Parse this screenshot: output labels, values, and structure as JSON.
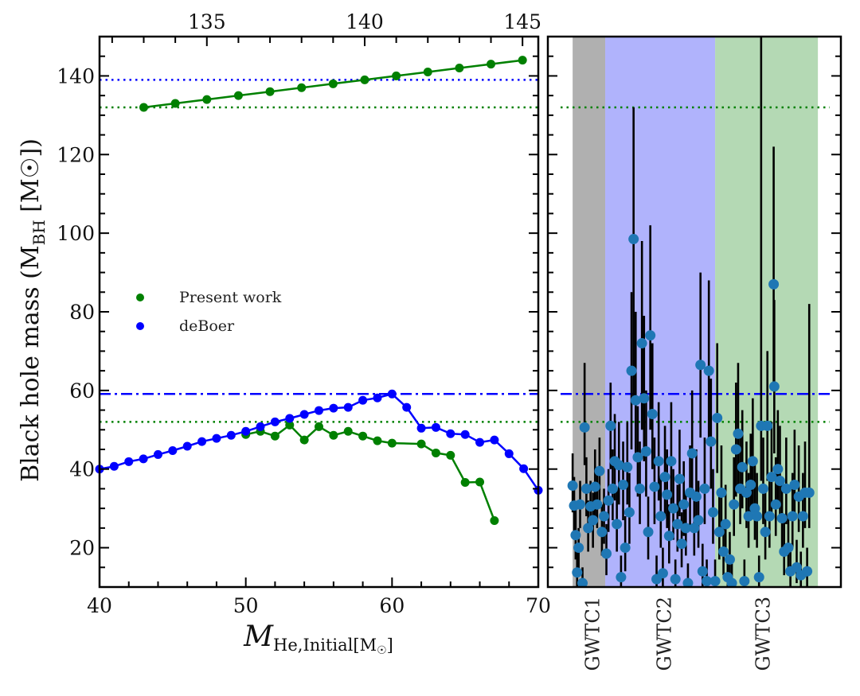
{
  "chart_data": [
    {
      "type": "line",
      "panel": "left",
      "title": "",
      "xlabel": "M_He,Initial [M☉]",
      "xlabel_main": "M",
      "xlabel_sub": "He,Initial[M",
      "xlabel_sub_end": "]",
      "ylabel": "Black hole mass (M_BH [M☉])",
      "ylabel_main": "Black hole mass (M",
      "ylabel_sub": "BH",
      "ylabel_end": " [M☉])",
      "xlim": [
        40,
        70
      ],
      "ylim": [
        10,
        150
      ],
      "xticks": [
        40,
        50,
        60,
        70
      ],
      "xtick_labels": [
        "40",
        "50",
        "60",
        "70"
      ],
      "yticks": [
        20,
        40,
        60,
        80,
        100,
        120,
        140
      ],
      "ytick_labels": [
        "20",
        "40",
        "60",
        "80",
        "100",
        "120",
        "140"
      ],
      "top_axis": {
        "xlim": [
          131.6,
          145.5
        ],
        "ticks": [
          135,
          140,
          145
        ],
        "tick_labels": [
          "135",
          "140",
          "145"
        ]
      },
      "legend": {
        "placement": "center-left",
        "entries": [
          {
            "label": "Present work",
            "color": "#008000"
          },
          {
            "label": "deBoer",
            "color": "#0000ff"
          }
        ]
      },
      "series": [
        {
          "name": "Present work (lower branch)",
          "color": "#008000",
          "axis": "bottom",
          "x": [
            50,
            51,
            52,
            53,
            54,
            55,
            56,
            57,
            58,
            59,
            60,
            62,
            63,
            64,
            65,
            66,
            67
          ],
          "y": [
            48.8,
            49.6,
            48.4,
            51.2,
            47.4,
            50.8,
            48.6,
            49.6,
            48.4,
            47.2,
            46.6,
            46.4,
            44.1,
            43.5,
            36.6,
            36.7,
            26.9
          ]
        },
        {
          "name": "deBoer",
          "color": "#0000ff",
          "axis": "bottom",
          "x": [
            40,
            41,
            42,
            43,
            44,
            45,
            46,
            47,
            48,
            49,
            50,
            51,
            52,
            53,
            54,
            55,
            56,
            57,
            58,
            59,
            60,
            61,
            62,
            63,
            64,
            65,
            66,
            67,
            68,
            69,
            70
          ],
          "y": [
            40.0,
            40.7,
            41.9,
            42.6,
            43.7,
            44.7,
            45.8,
            47.0,
            47.8,
            48.6,
            49.6,
            50.8,
            52.0,
            52.9,
            53.9,
            54.9,
            55.5,
            55.7,
            57.5,
            58.1,
            59.1,
            55.7,
            50.4,
            50.6,
            49.0,
            48.8,
            46.8,
            47.4,
            43.9,
            40.1,
            34.6
          ]
        },
        {
          "name": "Present work (upper branch)",
          "color": "#008000",
          "axis": "top",
          "x": [
            133,
            134,
            135,
            136,
            137,
            138,
            139,
            140,
            141,
            142,
            143,
            144,
            145
          ],
          "y": [
            132,
            133,
            134,
            135,
            136,
            137,
            138,
            139,
            140,
            141,
            142,
            143,
            144
          ]
        }
      ],
      "reference_lines": [
        {
          "name": "blue-dotted",
          "y": 139,
          "color": "#0000ff",
          "style": "dotted"
        },
        {
          "name": "green-dotted-upper",
          "y": 132,
          "color": "#008000",
          "style": "dotted"
        },
        {
          "name": "blue-dashdot",
          "y": 59.1,
          "color": "#0000ff",
          "style": "dashdot"
        },
        {
          "name": "green-dotted-lower",
          "y": 52,
          "color": "#008000",
          "style": "dotted"
        }
      ]
    },
    {
      "type": "scatter",
      "panel": "right",
      "title": "",
      "ylim": [
        10,
        150
      ],
      "xlim": [
        -8.3,
        89.8
      ],
      "category_labels": [
        {
          "label": "GWTC1",
          "x": 6.5
        },
        {
          "label": "GWTC2",
          "x": 30.5
        },
        {
          "label": "GWTC3",
          "x": 63.5
        }
      ],
      "bands": [
        {
          "label": "GWTC1",
          "x0": 0,
          "x1": 10.9,
          "color": "#b0b0b0"
        },
        {
          "label": "GWTC2",
          "x0": 10.9,
          "x1": 47.7,
          "color": "#b0b3fc"
        },
        {
          "label": "GWTC3",
          "x0": 47.7,
          "x1": 82.1,
          "color": "#b4d9b4"
        }
      ],
      "reference_lines": [
        {
          "name": "green-dotted-upper",
          "y": 132,
          "color": "#008000",
          "style": "dotted"
        },
        {
          "name": "blue-dashdot",
          "y": 59.1,
          "color": "#0000ff",
          "style": "dashdot"
        },
        {
          "name": "green-dotted-lower",
          "y": 52,
          "color": "#008000",
          "style": "dotted"
        }
      ],
      "marker_color": "#1f77b4",
      "points": [
        {
          "x": 0.0,
          "y": 35.8,
          "lo": 29,
          "hi": 44
        },
        {
          "x": 0.5,
          "y": 30.7,
          "lo": 24,
          "hi": 38
        },
        {
          "x": 1.0,
          "y": 23.2,
          "lo": 17,
          "hi": 30
        },
        {
          "x": 1.5,
          "y": 13.7,
          "lo": 10,
          "hi": 20
        },
        {
          "x": 2.0,
          "y": 20.0,
          "lo": 14,
          "hi": 25
        },
        {
          "x": 2.5,
          "y": 31.0,
          "lo": 25,
          "hi": 37
        },
        {
          "x": 3.3,
          "y": 11.0,
          "lo": 9,
          "hi": 15
        },
        {
          "x": 4.0,
          "y": 50.6,
          "lo": 41,
          "hi": 67
        },
        {
          "x": 4.6,
          "y": 35.0,
          "lo": 28,
          "hi": 43
        },
        {
          "x": 5.2,
          "y": 25.0,
          "lo": 19,
          "hi": 32
        },
        {
          "x": 6.0,
          "y": 30.5,
          "lo": 24,
          "hi": 37
        },
        {
          "x": 6.8,
          "y": 27.0,
          "lo": 20,
          "hi": 34
        },
        {
          "x": 7.5,
          "y": 35.5,
          "lo": 28,
          "hi": 45
        },
        {
          "x": 8.2,
          "y": 31.0,
          "lo": 25,
          "hi": 40
        },
        {
          "x": 9.0,
          "y": 39.5,
          "lo": 31,
          "hi": 48
        },
        {
          "x": 9.8,
          "y": 24.0,
          "lo": 18,
          "hi": 31
        },
        {
          "x": 10.5,
          "y": 28.0,
          "lo": 21,
          "hi": 35
        },
        {
          "x": 11.3,
          "y": 18.5,
          "lo": 13,
          "hi": 26
        },
        {
          "x": 12.0,
          "y": 32.0,
          "lo": 24,
          "hi": 40
        },
        {
          "x": 12.7,
          "y": 51.0,
          "lo": 40,
          "hi": 62
        },
        {
          "x": 13.4,
          "y": 35.0,
          "lo": 27,
          "hi": 45
        },
        {
          "x": 14.1,
          "y": 42.0,
          "lo": 32,
          "hi": 54
        },
        {
          "x": 14.8,
          "y": 26.0,
          "lo": 19,
          "hi": 35
        },
        {
          "x": 15.5,
          "y": 41.0,
          "lo": 31,
          "hi": 52
        },
        {
          "x": 16.2,
          "y": 12.5,
          "lo": 9,
          "hi": 18
        },
        {
          "x": 16.9,
          "y": 36.0,
          "lo": 27,
          "hi": 47
        },
        {
          "x": 17.6,
          "y": 20.0,
          "lo": 14,
          "hi": 28
        },
        {
          "x": 18.3,
          "y": 40.5,
          "lo": 31,
          "hi": 52
        },
        {
          "x": 19.0,
          "y": 29.0,
          "lo": 21,
          "hi": 39
        },
        {
          "x": 19.7,
          "y": 65.0,
          "lo": 45,
          "hi": 85
        },
        {
          "x": 20.4,
          "y": 98.5,
          "lo": 58,
          "hi": 132
        },
        {
          "x": 21.1,
          "y": 57.5,
          "lo": 43,
          "hi": 80
        },
        {
          "x": 21.8,
          "y": 43.0,
          "lo": 33,
          "hi": 56
        },
        {
          "x": 22.5,
          "y": 35.0,
          "lo": 26,
          "hi": 47
        },
        {
          "x": 23.2,
          "y": 72.0,
          "lo": 50,
          "hi": 98
        },
        {
          "x": 23.9,
          "y": 58.0,
          "lo": 42,
          "hi": 79
        },
        {
          "x": 24.6,
          "y": 44.5,
          "lo": 33,
          "hi": 60
        },
        {
          "x": 25.3,
          "y": 24.0,
          "lo": 17,
          "hi": 33
        },
        {
          "x": 26.0,
          "y": 74.0,
          "lo": 50,
          "hi": 102
        },
        {
          "x": 26.7,
          "y": 54.0,
          "lo": 40,
          "hi": 72
        },
        {
          "x": 27.4,
          "y": 35.5,
          "lo": 26,
          "hi": 48
        },
        {
          "x": 28.1,
          "y": 12.0,
          "lo": 9,
          "hi": 18
        },
        {
          "x": 28.8,
          "y": 42.0,
          "lo": 32,
          "hi": 57
        },
        {
          "x": 29.5,
          "y": 28.0,
          "lo": 20,
          "hi": 38
        },
        {
          "x": 30.2,
          "y": 13.5,
          "lo": 10,
          "hi": 20
        },
        {
          "x": 30.9,
          "y": 38.0,
          "lo": 28,
          "hi": 51
        },
        {
          "x": 31.6,
          "y": 33.5,
          "lo": 25,
          "hi": 45
        },
        {
          "x": 32.3,
          "y": 23.0,
          "lo": 16,
          "hi": 31
        },
        {
          "x": 33.0,
          "y": 42.0,
          "lo": 31,
          "hi": 57
        },
        {
          "x": 33.7,
          "y": 30.0,
          "lo": 22,
          "hi": 40
        },
        {
          "x": 34.4,
          "y": 12.0,
          "lo": 9,
          "hi": 17
        },
        {
          "x": 35.1,
          "y": 26.0,
          "lo": 19,
          "hi": 36
        },
        {
          "x": 35.8,
          "y": 37.5,
          "lo": 28,
          "hi": 50
        },
        {
          "x": 36.5,
          "y": 21.0,
          "lo": 15,
          "hi": 29
        },
        {
          "x": 37.2,
          "y": 31.0,
          "lo": 23,
          "hi": 42
        },
        {
          "x": 37.9,
          "y": 25.0,
          "lo": 18,
          "hi": 34
        },
        {
          "x": 38.6,
          "y": 11.0,
          "lo": 9,
          "hi": 16
        },
        {
          "x": 39.3,
          "y": 34.0,
          "lo": 25,
          "hi": 46
        },
        {
          "x": 40.0,
          "y": 44.0,
          "lo": 33,
          "hi": 60
        },
        {
          "x": 40.7,
          "y": 25.0,
          "lo": 18,
          "hi": 34
        },
        {
          "x": 41.4,
          "y": 33.0,
          "lo": 24,
          "hi": 45
        },
        {
          "x": 42.1,
          "y": 27.0,
          "lo": 20,
          "hi": 37
        },
        {
          "x": 42.8,
          "y": 66.5,
          "lo": 48,
          "hi": 90
        },
        {
          "x": 43.5,
          "y": 14.0,
          "lo": 10,
          "hi": 21
        },
        {
          "x": 44.2,
          "y": 35.0,
          "lo": 26,
          "hi": 48
        },
        {
          "x": 44.9,
          "y": 11.5,
          "lo": 9,
          "hi": 17
        },
        {
          "x": 45.6,
          "y": 65.0,
          "lo": 47,
          "hi": 88
        },
        {
          "x": 46.3,
          "y": 47.0,
          "lo": 35,
          "hi": 63
        },
        {
          "x": 47.0,
          "y": 29.0,
          "lo": 21,
          "hi": 40
        },
        {
          "x": 47.7,
          "y": 11.5,
          "lo": 9,
          "hi": 17
        },
        {
          "x": 48.4,
          "y": 53.0,
          "lo": 39,
          "hi": 72
        },
        {
          "x": 49.1,
          "y": 24.0,
          "lo": 17,
          "hi": 33
        },
        {
          "x": 49.8,
          "y": 34.0,
          "lo": 25,
          "hi": 46
        },
        {
          "x": 50.5,
          "y": 19.0,
          "lo": 13,
          "hi": 27
        },
        {
          "x": 51.2,
          "y": 26.0,
          "lo": 19,
          "hi": 36
        },
        {
          "x": 51.9,
          "y": 12.5,
          "lo": 9,
          "hi": 18
        },
        {
          "x": 52.6,
          "y": 17.0,
          "lo": 12,
          "hi": 24
        },
        {
          "x": 53.3,
          "y": 11.0,
          "lo": 9,
          "hi": 16
        },
        {
          "x": 54.0,
          "y": 31.0,
          "lo": 23,
          "hi": 43
        },
        {
          "x": 54.7,
          "y": 45.0,
          "lo": 33,
          "hi": 62
        },
        {
          "x": 55.4,
          "y": 49.0,
          "lo": 36,
          "hi": 67
        },
        {
          "x": 56.1,
          "y": 35.0,
          "lo": 26,
          "hi": 48
        },
        {
          "x": 56.8,
          "y": 40.5,
          "lo": 30,
          "hi": 55
        },
        {
          "x": 57.5,
          "y": 11.5,
          "lo": 9,
          "hi": 17
        },
        {
          "x": 58.2,
          "y": 34.0,
          "lo": 25,
          "hi": 47
        },
        {
          "x": 58.9,
          "y": 28.0,
          "lo": 20,
          "hi": 39
        },
        {
          "x": 59.6,
          "y": 36.0,
          "lo": 27,
          "hi": 49
        },
        {
          "x": 60.3,
          "y": 42.0,
          "lo": 31,
          "hi": 58
        },
        {
          "x": 61.0,
          "y": 30.0,
          "lo": 22,
          "hi": 41
        },
        {
          "x": 61.7,
          "y": 28.0,
          "lo": 20,
          "hi": 39
        },
        {
          "x": 62.4,
          "y": 12.5,
          "lo": 9,
          "hi": 18
        },
        {
          "x": 63.1,
          "y": 51.0,
          "lo": 37,
          "hi": 150
        },
        {
          "x": 63.8,
          "y": 35.0,
          "lo": 26,
          "hi": 48
        },
        {
          "x": 64.5,
          "y": 24.0,
          "lo": 17,
          "hi": 34
        },
        {
          "x": 65.2,
          "y": 51.0,
          "lo": 37,
          "hi": 70
        },
        {
          "x": 65.9,
          "y": 28.0,
          "lo": 20,
          "hi": 39
        },
        {
          "x": 66.6,
          "y": 38.0,
          "lo": 28,
          "hi": 52
        },
        {
          "x": 67.3,
          "y": 87.0,
          "lo": 61,
          "hi": 122
        },
        {
          "x": 67.5,
          "y": 61.0,
          "lo": 44,
          "hi": 83
        },
        {
          "x": 68.0,
          "y": 31.0,
          "lo": 23,
          "hi": 43
        },
        {
          "x": 68.7,
          "y": 40.0,
          "lo": 30,
          "hi": 55
        },
        {
          "x": 69.4,
          "y": 37.0,
          "lo": 27,
          "hi": 51
        },
        {
          "x": 70.1,
          "y": 27.5,
          "lo": 20,
          "hi": 38
        },
        {
          "x": 70.8,
          "y": 19.0,
          "lo": 13,
          "hi": 27
        },
        {
          "x": 71.5,
          "y": 35.0,
          "lo": 26,
          "hi": 48
        },
        {
          "x": 72.2,
          "y": 20.0,
          "lo": 14,
          "hi": 28
        },
        {
          "x": 72.9,
          "y": 14.0,
          "lo": 10,
          "hi": 20
        },
        {
          "x": 73.6,
          "y": 28.0,
          "lo": 20,
          "hi": 39
        },
        {
          "x": 74.3,
          "y": 36.0,
          "lo": 27,
          "hi": 50
        },
        {
          "x": 75.0,
          "y": 15.0,
          "lo": 11,
          "hi": 22
        },
        {
          "x": 75.7,
          "y": 33.0,
          "lo": 24,
          "hi": 46
        },
        {
          "x": 76.4,
          "y": 13.0,
          "lo": 9,
          "hi": 19
        },
        {
          "x": 77.1,
          "y": 28.0,
          "lo": 20,
          "hi": 39
        },
        {
          "x": 77.8,
          "y": 34.0,
          "lo": 25,
          "hi": 47
        },
        {
          "x": 78.5,
          "y": 14.0,
          "lo": 10,
          "hi": 20
        },
        {
          "x": 79.2,
          "y": 34.0,
          "lo": 25,
          "hi": 82
        }
      ]
    }
  ]
}
